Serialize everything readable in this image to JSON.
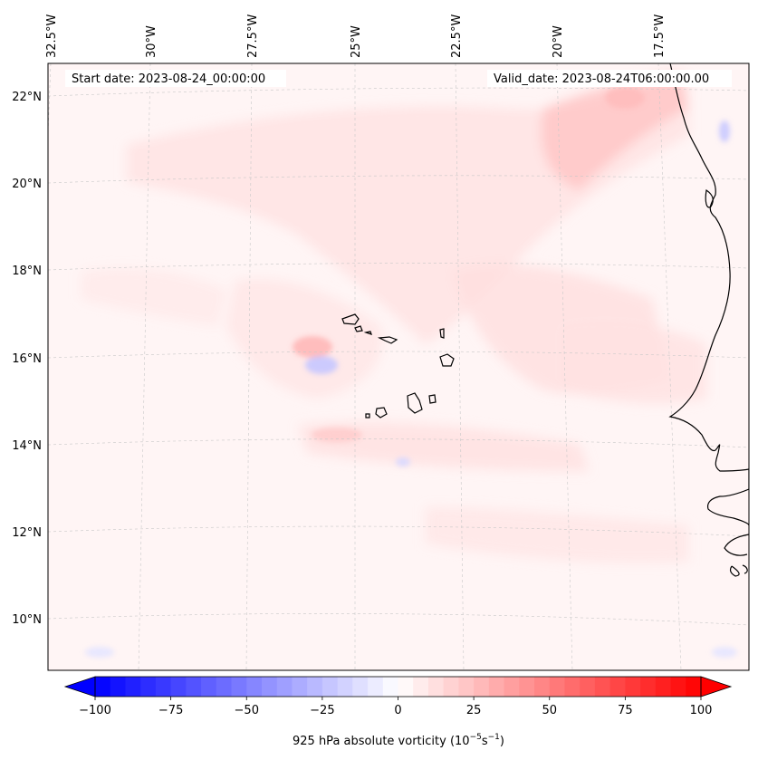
{
  "map": {
    "start_date_label": "Start date: 2023-08-24_00:00:00",
    "valid_date_label": "Valid_date: 2023-08-24T06:00:00.00",
    "lon_labels": [
      "32.5°W",
      "30°W",
      "27.5°W",
      "25°W",
      "22.5°W",
      "20°W",
      "17.5°W"
    ],
    "lat_labels": [
      "22°N",
      "20°N",
      "18°N",
      "16°N",
      "14°N",
      "12°N",
      "10°N"
    ],
    "gridlines": true,
    "coastline_color": "#000000"
  },
  "colorbar": {
    "min": -100,
    "max": 100,
    "levels": 40,
    "tick_values": [
      -100,
      -75,
      -50,
      -25,
      0,
      25,
      50,
      75,
      100
    ],
    "tick_labels": [
      "−100",
      "−75",
      "−50",
      "−25",
      "0",
      "25",
      "50",
      "75",
      "100"
    ],
    "label": "925 hPa absolute vorticity (10",
    "label_exp1": "−5",
    "label_mid": "s",
    "label_exp2": "−1",
    "label_end": ")",
    "colormap": "bwr",
    "extend": "both"
  }
}
